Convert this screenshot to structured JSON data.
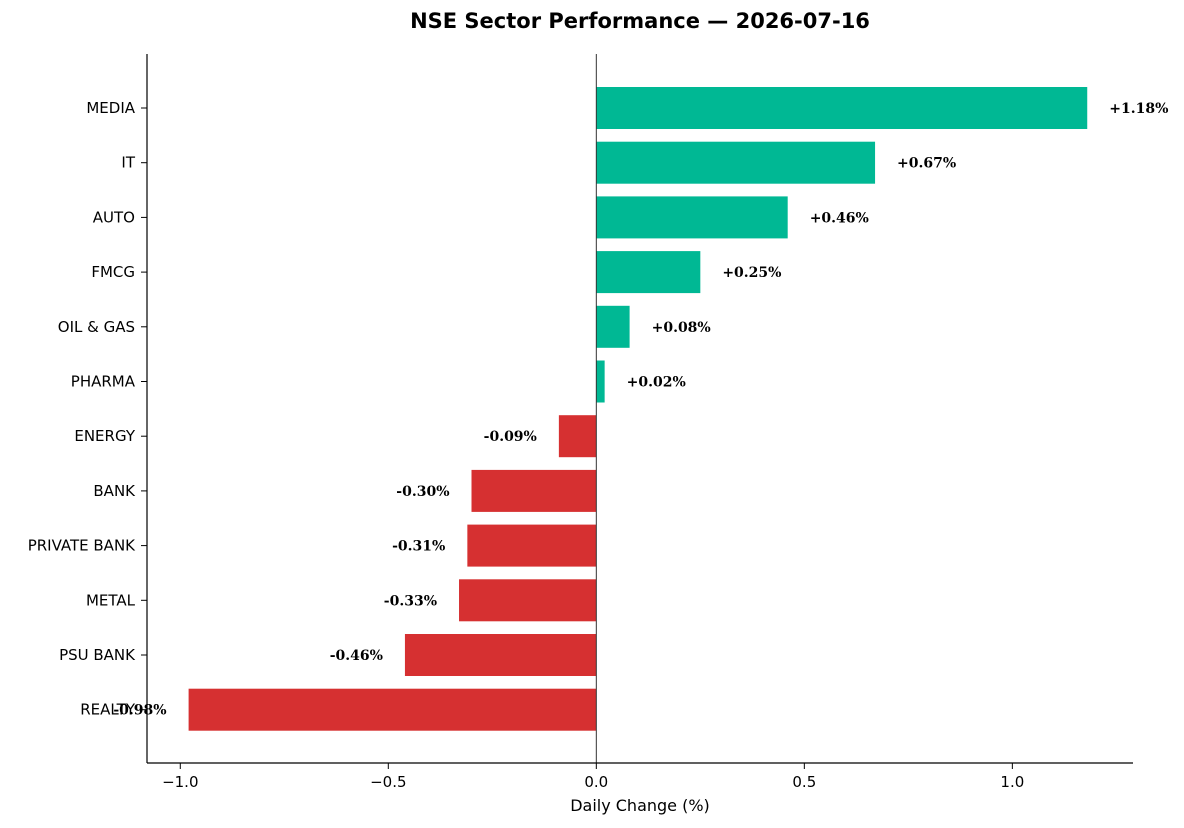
{
  "chart_data": {
    "type": "bar",
    "orientation": "horizontal",
    "title": "NSE Sector Performance — 2026-07-16",
    "xlabel": "Daily Change (%)",
    "ylabel": "",
    "categories": [
      "MEDIA",
      "IT",
      "AUTO",
      "FMCG",
      "OIL & GAS",
      "PHARMA",
      "ENERGY",
      "BANK",
      "PRIVATE BANK",
      "METAL",
      "PSU BANK",
      "REALTY"
    ],
    "values": [
      1.18,
      0.67,
      0.46,
      0.25,
      0.08,
      0.02,
      -0.09,
      -0.3,
      -0.31,
      -0.33,
      -0.46,
      -0.98
    ],
    "data_labels": [
      "+1.18%",
      "+0.67%",
      "+0.46%",
      "+0.25%",
      "+0.08%",
      "+0.02%",
      "-0.09%",
      "-0.30%",
      "-0.31%",
      "-0.33%",
      "-0.46%",
      "-0.98%"
    ],
    "xlim": [
      -1.08,
      1.29
    ],
    "xticks": [
      -1.0,
      -0.5,
      0.0,
      0.5,
      1.0
    ],
    "xtick_labels": [
      "−1.0",
      "−0.5",
      "0.0",
      "0.5",
      "1.0"
    ],
    "grid": false,
    "colors": {
      "positive": "#00b894",
      "negative": "#d63031"
    }
  }
}
